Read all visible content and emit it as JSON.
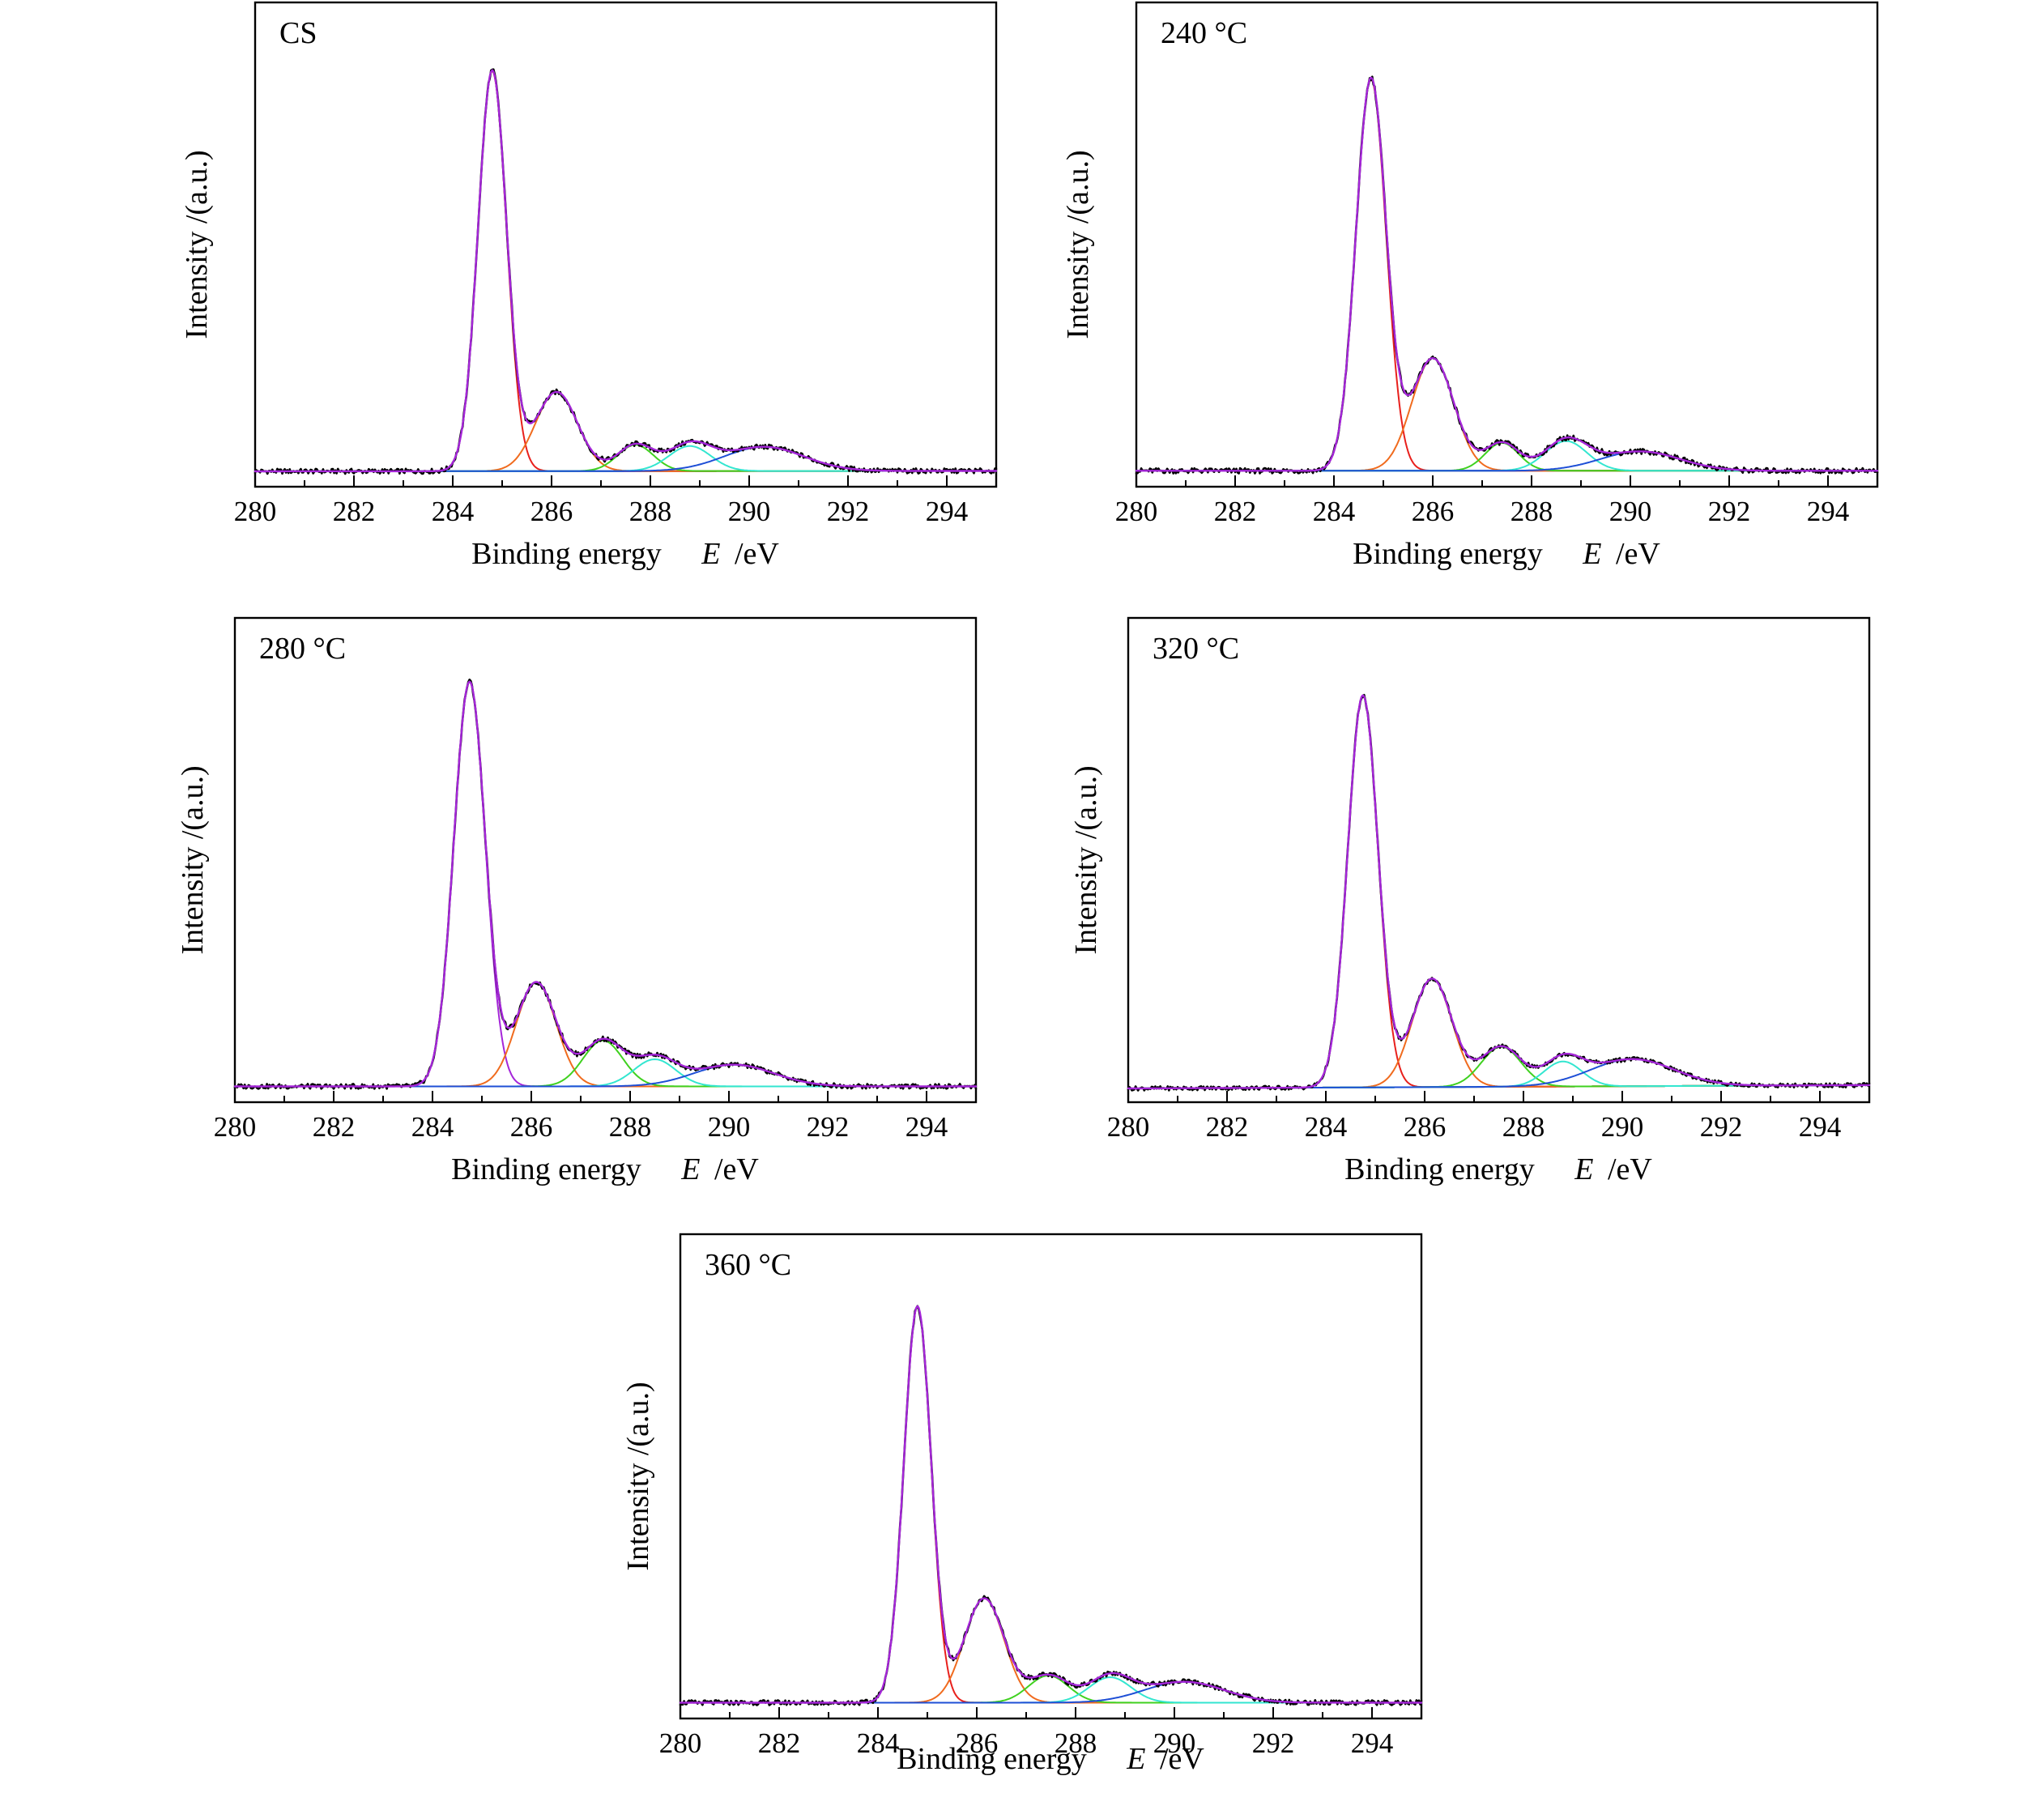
{
  "chart_data": [
    {
      "type": "line",
      "title": "CS",
      "xlabel": "Binding energy",
      "xlabel_symbol": "E",
      "xlabel_unit": "/eV",
      "ylabel": "Intensity /(a.u.)",
      "xlim": [
        280,
        295
      ],
      "ylim": [
        0,
        1.08
      ],
      "xticks": [
        "280",
        "282",
        "284",
        "286",
        "288",
        "290",
        "292",
        "294"
      ],
      "y_ticks_shown": false,
      "baseline": {
        "start": 0.002,
        "end": 0.003
      },
      "components": [
        {
          "color": "#e8201c",
          "center": 284.8,
          "height": 0.96,
          "width": 0.68
        },
        {
          "color": "#f06b1e",
          "center": 286.1,
          "height": 0.19,
          "width": 1.0
        },
        {
          "color": "#3fd11f",
          "center": 287.7,
          "height": 0.063,
          "width": 0.85
        },
        {
          "color": "#33e6d0",
          "center": 288.8,
          "height": 0.06,
          "width": 1.0
        },
        {
          "color": "#1e4fd6",
          "center": 290.3,
          "height": 0.058,
          "width": 1.9
        }
      ],
      "series_colors": {
        "measured": "#000000",
        "envelope": "#a526d9",
        "baseline": "#1e4fd6"
      },
      "noise": 0.006
    },
    {
      "type": "line",
      "title": "240 °C",
      "xlabel": "Binding energy",
      "xlabel_symbol": "E",
      "xlabel_unit": "/eV",
      "ylabel": "Intensity /(a.u.)",
      "xlim": [
        280,
        295
      ],
      "ylim": [
        0,
        1.0
      ],
      "xticks": [
        "280",
        "282",
        "284",
        "286",
        "288",
        "290",
        "292",
        "294"
      ],
      "y_ticks_shown": false,
      "baseline": {
        "start": 0.003,
        "end": 0.003
      },
      "components": [
        {
          "color": "#e8201c",
          "center": 284.75,
          "height": 0.87,
          "width": 0.72
        },
        {
          "color": "#f06b1e",
          "center": 286.0,
          "height": 0.25,
          "width": 1.0
        },
        {
          "color": "#3fd11f",
          "center": 287.4,
          "height": 0.062,
          "width": 0.8
        },
        {
          "color": "#33e6d0",
          "center": 288.7,
          "height": 0.066,
          "width": 1.0
        },
        {
          "color": "#1e4fd6",
          "center": 290.2,
          "height": 0.043,
          "width": 1.9
        }
      ],
      "series_colors": {
        "measured": "#000000",
        "envelope": "#a526d9",
        "baseline": "#1e4fd6"
      },
      "noise": 0.006
    },
    {
      "type": "line",
      "title": "280 °C",
      "xlabel": "Binding energy",
      "xlabel_symbol": "E",
      "xlabel_unit": "/eV",
      "ylabel": "Intensity /(a.u.)",
      "xlim": [
        280,
        295
      ],
      "ylim": [
        0,
        1.08
      ],
      "xticks": [
        "280",
        "282",
        "284",
        "286",
        "288",
        "290",
        "292",
        "294"
      ],
      "y_ticks_shown": false,
      "baseline": {
        "start": 0.003,
        "end": 0.003
      },
      "components": [
        {
          "color": "#a526d9",
          "center": 284.75,
          "height": 0.97,
          "width": 0.75
        },
        {
          "color": "#f06b1e",
          "center": 286.1,
          "height": 0.25,
          "width": 0.95
        },
        {
          "color": "#3fd11f",
          "center": 287.45,
          "height": 0.11,
          "width": 0.95
        },
        {
          "color": "#33e6d0",
          "center": 288.5,
          "height": 0.065,
          "width": 1.0
        },
        {
          "color": "#1e4fd6",
          "center": 290.1,
          "height": 0.052,
          "width": 1.9
        }
      ],
      "series_colors": {
        "measured": "#000000",
        "envelope": "#a526d9",
        "baseline": "#1e4fd6"
      },
      "noise": 0.006
    },
    {
      "type": "line",
      "title": "320 °C",
      "xlabel": "Binding energy",
      "xlabel_symbol": "E",
      "xlabel_unit": "/eV",
      "ylabel": "Intensity /(a.u.)",
      "xlim": [
        280,
        295
      ],
      "ylim": [
        0,
        1.08
      ],
      "xticks": [
        "280",
        "282",
        "284",
        "286",
        "288",
        "290",
        "292",
        "294"
      ],
      "y_ticks_shown": false,
      "baseline": {
        "start": -0.002,
        "end": 0.006
      },
      "components": [
        {
          "color": "#e8201c",
          "center": 284.75,
          "height": 0.94,
          "width": 0.72
        },
        {
          "color": "#f06b1e",
          "center": 286.15,
          "height": 0.26,
          "width": 0.95
        },
        {
          "color": "#3fd11f",
          "center": 287.55,
          "height": 0.096,
          "width": 0.95
        },
        {
          "color": "#33e6d0",
          "center": 288.8,
          "height": 0.06,
          "width": 0.9
        },
        {
          "color": "#1e4fd6",
          "center": 290.2,
          "height": 0.065,
          "width": 2.0
        }
      ],
      "series_colors": {
        "measured": "#000000",
        "envelope": "#a526d9",
        "baseline": "#1e4fd6"
      },
      "noise": 0.005
    },
    {
      "type": "line",
      "title": "360 °C",
      "xlabel": "Binding energy",
      "xlabel_symbol": "E",
      "xlabel_unit": "/eV",
      "ylabel": "Intensity /(a.u.)",
      "xlim": [
        280,
        295
      ],
      "ylim": [
        0,
        1.08
      ],
      "xticks": [
        "280",
        "282",
        "284",
        "286",
        "288",
        "290",
        "292",
        "294"
      ],
      "y_ticks_shown": false,
      "baseline": {
        "start": 0.003,
        "end": 0.003
      },
      "components": [
        {
          "color": "#e8201c",
          "center": 284.8,
          "height": 0.95,
          "width": 0.65
        },
        {
          "color": "#f06b1e",
          "center": 286.15,
          "height": 0.25,
          "width": 0.95
        },
        {
          "color": "#3fd11f",
          "center": 287.45,
          "height": 0.065,
          "width": 0.95
        },
        {
          "color": "#33e6d0",
          "center": 288.7,
          "height": 0.061,
          "width": 1.0
        },
        {
          "color": "#1e4fd6",
          "center": 290.2,
          "height": 0.05,
          "width": 1.9
        }
      ],
      "series_colors": {
        "measured": "#000000",
        "envelope": "#a526d9",
        "baseline": "#1e4fd6"
      },
      "noise": 0.006
    }
  ]
}
